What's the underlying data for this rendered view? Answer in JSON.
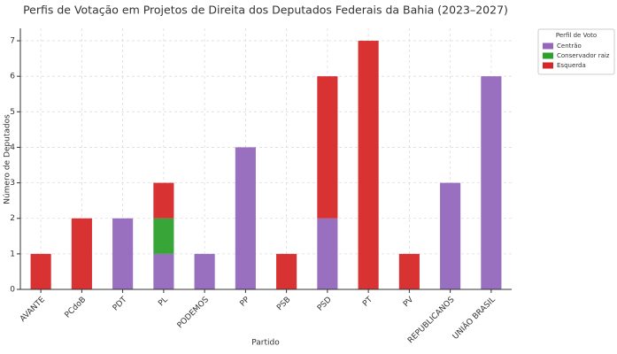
{
  "chart_data": {
    "type": "stacked_bar",
    "title": "Perfis de Votação em Projetos de Direita dos Deputados Federais da Bahia (2023–2027)",
    "x_label": "Partido",
    "y_label": "Número de Deputados",
    "categories": [
      "AVANTE",
      "PCdoB",
      "PDT",
      "PL",
      "PODEMOS",
      "PP",
      "PSB",
      "PSD",
      "PT",
      "PV",
      "REPUBLICANOS",
      "UNIÃO BRASIL"
    ],
    "series": [
      {
        "name": "Centrão",
        "color": "#9467bd",
        "values": [
          0,
          0,
          2,
          1,
          1,
          4,
          0,
          2,
          0,
          0,
          3,
          6
        ]
      },
      {
        "name": "Conservador raiz",
        "color": "#2ca02c",
        "values": [
          0,
          0,
          0,
          1,
          0,
          0,
          0,
          0,
          0,
          0,
          0,
          0
        ]
      },
      {
        "name": "Esquerda",
        "color": "#d62728",
        "values": [
          1,
          2,
          0,
          1,
          0,
          0,
          1,
          4,
          7,
          1,
          0,
          0
        ]
      }
    ],
    "legend_title": "Perfil de Voto",
    "legend": "outside-upper-right",
    "ylim": [
      0,
      7.35
    ],
    "yticks": [
      0,
      1,
      2,
      3,
      4,
      5,
      6,
      7
    ],
    "grid": true
  }
}
